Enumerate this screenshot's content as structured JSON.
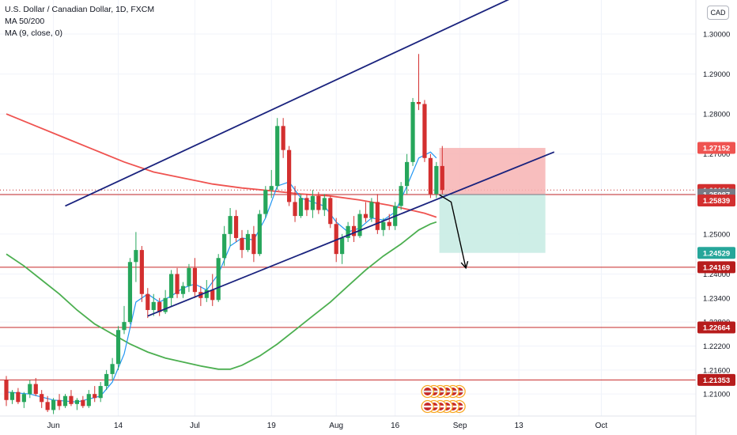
{
  "legend": {
    "title": "U.S. Dollar / Canadian Dollar, 1D, FXCM",
    "indicator_1": "MA 50/200",
    "indicator_2": "MA (9, close, 0)"
  },
  "currency_button": "CAD",
  "colors": {
    "bull": "#26a65b",
    "bear": "#d32f2f",
    "ma9": "#2196f3",
    "ma50": "#4caf50",
    "ma200": "#ef5350",
    "channel": "#1a237e",
    "level": "#c62828",
    "stop_zone": "#f7b3b3",
    "target_zone": "#c6ebe3"
  },
  "chart_data": {
    "type": "candlestick",
    "symbol": "U.S. Dollar / Canadian Dollar",
    "timeframe": "1D",
    "source": "FXCM",
    "ylim": [
      1.2045,
      1.3085
    ],
    "y_ticks": [
      "1.30000",
      "1.29000",
      "1.28000",
      "1.27000",
      "1.26000",
      "1.25000",
      "1.24000",
      "1.23400",
      "1.22800",
      "1.22200",
      "1.21600",
      "1.21000"
    ],
    "x_ticks": [
      {
        "label": "Jun",
        "i": 8
      },
      {
        "label": "14",
        "i": 19
      },
      {
        "label": "Jul",
        "i": 32
      },
      {
        "label": "19",
        "i": 45
      },
      {
        "label": "Aug",
        "i": 56
      },
      {
        "label": "16",
        "i": 66
      },
      {
        "label": "Sep",
        "i": 77
      },
      {
        "label": "13",
        "i": 87
      },
      {
        "label": "Oct",
        "i": 101
      }
    ],
    "price_labels": [
      {
        "label": "1.27152",
        "price": 1.27152,
        "kind": "stop"
      },
      {
        "label": "1.26101",
        "price": 1.26101,
        "kind": "last"
      },
      {
        "label": "1.25987",
        "price": 1.25987,
        "kind": "entry"
      },
      {
        "label": "1.25839",
        "price": 1.25839,
        "kind": "ma"
      },
      {
        "label": "1.24529",
        "price": 1.24529,
        "kind": "target"
      },
      {
        "label": "1.24169",
        "price": 1.24169,
        "kind": "level"
      },
      {
        "label": "1.22664",
        "price": 1.22664,
        "kind": "level"
      },
      {
        "label": "1.21353",
        "price": 1.21353,
        "kind": "level"
      }
    ],
    "horizontal_levels": [
      1.25987,
      1.24169,
      1.22664,
      1.21353
    ],
    "current_price_line": 1.26101,
    "candles": [
      [
        1.2135,
        1.2145,
        1.207,
        1.2085
      ],
      [
        1.2085,
        1.211,
        1.2075,
        1.2105
      ],
      [
        1.2105,
        1.2115,
        1.2075,
        1.208
      ],
      [
        1.208,
        1.2105,
        1.2065,
        1.21
      ],
      [
        1.21,
        1.2135,
        1.209,
        1.2125
      ],
      [
        1.2125,
        1.214,
        1.2095,
        1.21
      ],
      [
        1.21,
        1.211,
        1.2065,
        1.208
      ],
      [
        1.208,
        1.2095,
        1.2055,
        1.206
      ],
      [
        1.206,
        1.209,
        1.205,
        1.2085
      ],
      [
        1.2085,
        1.21,
        1.206,
        1.207
      ],
      [
        1.207,
        1.21,
        1.2065,
        1.2095
      ],
      [
        1.2095,
        1.211,
        1.207,
        1.2075
      ],
      [
        1.2075,
        1.209,
        1.206,
        1.2085
      ],
      [
        1.2085,
        1.2095,
        1.2065,
        1.207
      ],
      [
        1.207,
        1.211,
        1.2065,
        1.21
      ],
      [
        1.21,
        1.212,
        1.208,
        1.209
      ],
      [
        1.209,
        1.213,
        1.208,
        1.212
      ],
      [
        1.212,
        1.216,
        1.211,
        1.215
      ],
      [
        1.215,
        1.219,
        1.2135,
        1.2175
      ],
      [
        1.2175,
        1.227,
        1.216,
        1.226
      ],
      [
        1.226,
        1.232,
        1.225,
        1.228
      ],
      [
        1.228,
        1.244,
        1.2275,
        1.243
      ],
      [
        1.243,
        1.2505,
        1.238,
        1.246
      ],
      [
        1.246,
        1.247,
        1.233,
        1.235
      ],
      [
        1.235,
        1.2365,
        1.229,
        1.231
      ],
      [
        1.231,
        1.235,
        1.2295,
        1.233
      ],
      [
        1.233,
        1.234,
        1.2295,
        1.2305
      ],
      [
        1.2305,
        1.236,
        1.23,
        1.234
      ],
      [
        1.234,
        1.241,
        1.232,
        1.24
      ],
      [
        1.24,
        1.2415,
        1.234,
        1.235
      ],
      [
        1.235,
        1.238,
        1.234,
        1.237
      ],
      [
        1.237,
        1.2425,
        1.2355,
        1.2415
      ],
      [
        1.2415,
        1.244,
        1.234,
        1.2355
      ],
      [
        1.2355,
        1.237,
        1.232,
        1.234
      ],
      [
        1.234,
        1.2385,
        1.233,
        1.236
      ],
      [
        1.236,
        1.24,
        1.232,
        1.2335
      ],
      [
        1.2335,
        1.245,
        1.233,
        1.244
      ],
      [
        1.244,
        1.252,
        1.242,
        1.25
      ],
      [
        1.25,
        1.2565,
        1.247,
        1.2545
      ],
      [
        1.2545,
        1.256,
        1.248,
        1.249
      ],
      [
        1.249,
        1.251,
        1.244,
        1.246
      ],
      [
        1.246,
        1.251,
        1.2455,
        1.25
      ],
      [
        1.25,
        1.252,
        1.243,
        1.245
      ],
      [
        1.245,
        1.256,
        1.2445,
        1.255
      ],
      [
        1.255,
        1.262,
        1.254,
        1.261
      ],
      [
        1.261,
        1.266,
        1.259,
        1.262
      ],
      [
        1.262,
        1.279,
        1.261,
        1.277
      ],
      [
        1.277,
        1.279,
        1.269,
        1.271
      ],
      [
        1.271,
        1.272,
        1.257,
        1.258
      ],
      [
        1.258,
        1.262,
        1.253,
        1.2545
      ],
      [
        1.2545,
        1.26,
        1.254,
        1.259
      ],
      [
        1.259,
        1.26,
        1.2545,
        1.256
      ],
      [
        1.256,
        1.261,
        1.254,
        1.2595
      ],
      [
        1.2595,
        1.2605,
        1.255,
        1.256
      ],
      [
        1.256,
        1.26,
        1.2545,
        1.259
      ],
      [
        1.259,
        1.2595,
        1.2515,
        1.2525
      ],
      [
        1.2525,
        1.254,
        1.243,
        1.245
      ],
      [
        1.245,
        1.25,
        1.2425,
        1.249
      ],
      [
        1.249,
        1.253,
        1.248,
        1.252
      ],
      [
        1.252,
        1.2545,
        1.248,
        1.2495
      ],
      [
        1.2495,
        1.256,
        1.249,
        1.255
      ],
      [
        1.255,
        1.258,
        1.253,
        1.254
      ],
      [
        1.254,
        1.259,
        1.253,
        1.258
      ],
      [
        1.258,
        1.26,
        1.25,
        1.251
      ],
      [
        1.251,
        1.254,
        1.2495,
        1.253
      ],
      [
        1.253,
        1.255,
        1.251,
        1.252
      ],
      [
        1.252,
        1.258,
        1.251,
        1.257
      ],
      [
        1.257,
        1.263,
        1.256,
        1.262
      ],
      [
        1.262,
        1.27,
        1.26,
        1.268
      ],
      [
        1.268,
        1.284,
        1.267,
        1.283
      ],
      [
        1.283,
        1.295,
        1.281,
        1.2825
      ],
      [
        1.2825,
        1.2835,
        1.268,
        1.269
      ],
      [
        1.269,
        1.27,
        1.259,
        1.26
      ],
      [
        1.26,
        1.268,
        1.259,
        1.267
      ],
      [
        1.267,
        1.272,
        1.26,
        1.261
      ]
    ],
    "ma9": [
      [
        0,
        1.2105
      ],
      [
        4,
        1.21
      ],
      [
        8,
        1.2085
      ],
      [
        12,
        1.208
      ],
      [
        16,
        1.2095
      ],
      [
        18,
        1.213
      ],
      [
        20,
        1.22
      ],
      [
        22,
        1.233
      ],
      [
        24,
        1.235
      ],
      [
        26,
        1.233
      ],
      [
        28,
        1.2345
      ],
      [
        30,
        1.2365
      ],
      [
        32,
        1.2375
      ],
      [
        34,
        1.236
      ],
      [
        36,
        1.24
      ],
      [
        38,
        1.247
      ],
      [
        40,
        1.249
      ],
      [
        42,
        1.2485
      ],
      [
        44,
        1.254
      ],
      [
        46,
        1.262
      ],
      [
        48,
        1.263
      ],
      [
        50,
        1.259
      ],
      [
        52,
        1.258
      ],
      [
        54,
        1.257
      ],
      [
        56,
        1.253
      ],
      [
        58,
        1.2505
      ],
      [
        60,
        1.2515
      ],
      [
        62,
        1.254
      ],
      [
        64,
        1.2535
      ],
      [
        66,
        1.2555
      ],
      [
        68,
        1.262
      ],
      [
        70,
        1.269
      ],
      [
        72,
        1.2705
      ],
      [
        73,
        1.269
      ]
    ],
    "ma50": [
      [
        0,
        1.245
      ],
      [
        3,
        1.242
      ],
      [
        6,
        1.2385
      ],
      [
        9,
        1.235
      ],
      [
        12,
        1.231
      ],
      [
        15,
        1.2275
      ],
      [
        18,
        1.225
      ],
      [
        21,
        1.2225
      ],
      [
        24,
        1.2205
      ],
      [
        27,
        1.219
      ],
      [
        30,
        1.218
      ],
      [
        33,
        1.217
      ],
      [
        36,
        1.2162
      ],
      [
        38,
        1.2162
      ],
      [
        40,
        1.2172
      ],
      [
        43,
        1.2195
      ],
      [
        46,
        1.2225
      ],
      [
        49,
        1.226
      ],
      [
        52,
        1.2295
      ],
      [
        55,
        1.233
      ],
      [
        58,
        1.237
      ],
      [
        61,
        1.241
      ],
      [
        64,
        1.2445
      ],
      [
        67,
        1.2475
      ],
      [
        70,
        1.251
      ],
      [
        72,
        1.2525
      ],
      [
        73,
        1.253
      ]
    ],
    "ma200": [
      [
        0,
        1.28
      ],
      [
        5,
        1.277
      ],
      [
        10,
        1.274
      ],
      [
        15,
        1.271
      ],
      [
        20,
        1.268
      ],
      [
        25,
        1.2655
      ],
      [
        30,
        1.264
      ],
      [
        35,
        1.2625
      ],
      [
        40,
        1.2615
      ],
      [
        45,
        1.2608
      ],
      [
        50,
        1.26
      ],
      [
        55,
        1.2595
      ],
      [
        60,
        1.2585
      ],
      [
        65,
        1.2572
      ],
      [
        68,
        1.2562
      ],
      [
        71,
        1.2552
      ],
      [
        73,
        1.2542
      ]
    ],
    "channel_upper": [
      [
        10,
        1.257
      ],
      [
        88,
        1.3105
      ]
    ],
    "channel_lower": [
      [
        24,
        1.2295
      ],
      [
        93,
        1.2705
      ]
    ],
    "projection_arrow": [
      [
        73.5,
        1.2598
      ],
      [
        75.5,
        1.258
      ],
      [
        78,
        1.2415
      ]
    ],
    "position": {
      "type": "short",
      "entry": 1.25987,
      "stop": 1.27152,
      "target": 1.24529,
      "start_i": 73.5,
      "end_i": 91.5
    },
    "events_i": 71.5
  }
}
